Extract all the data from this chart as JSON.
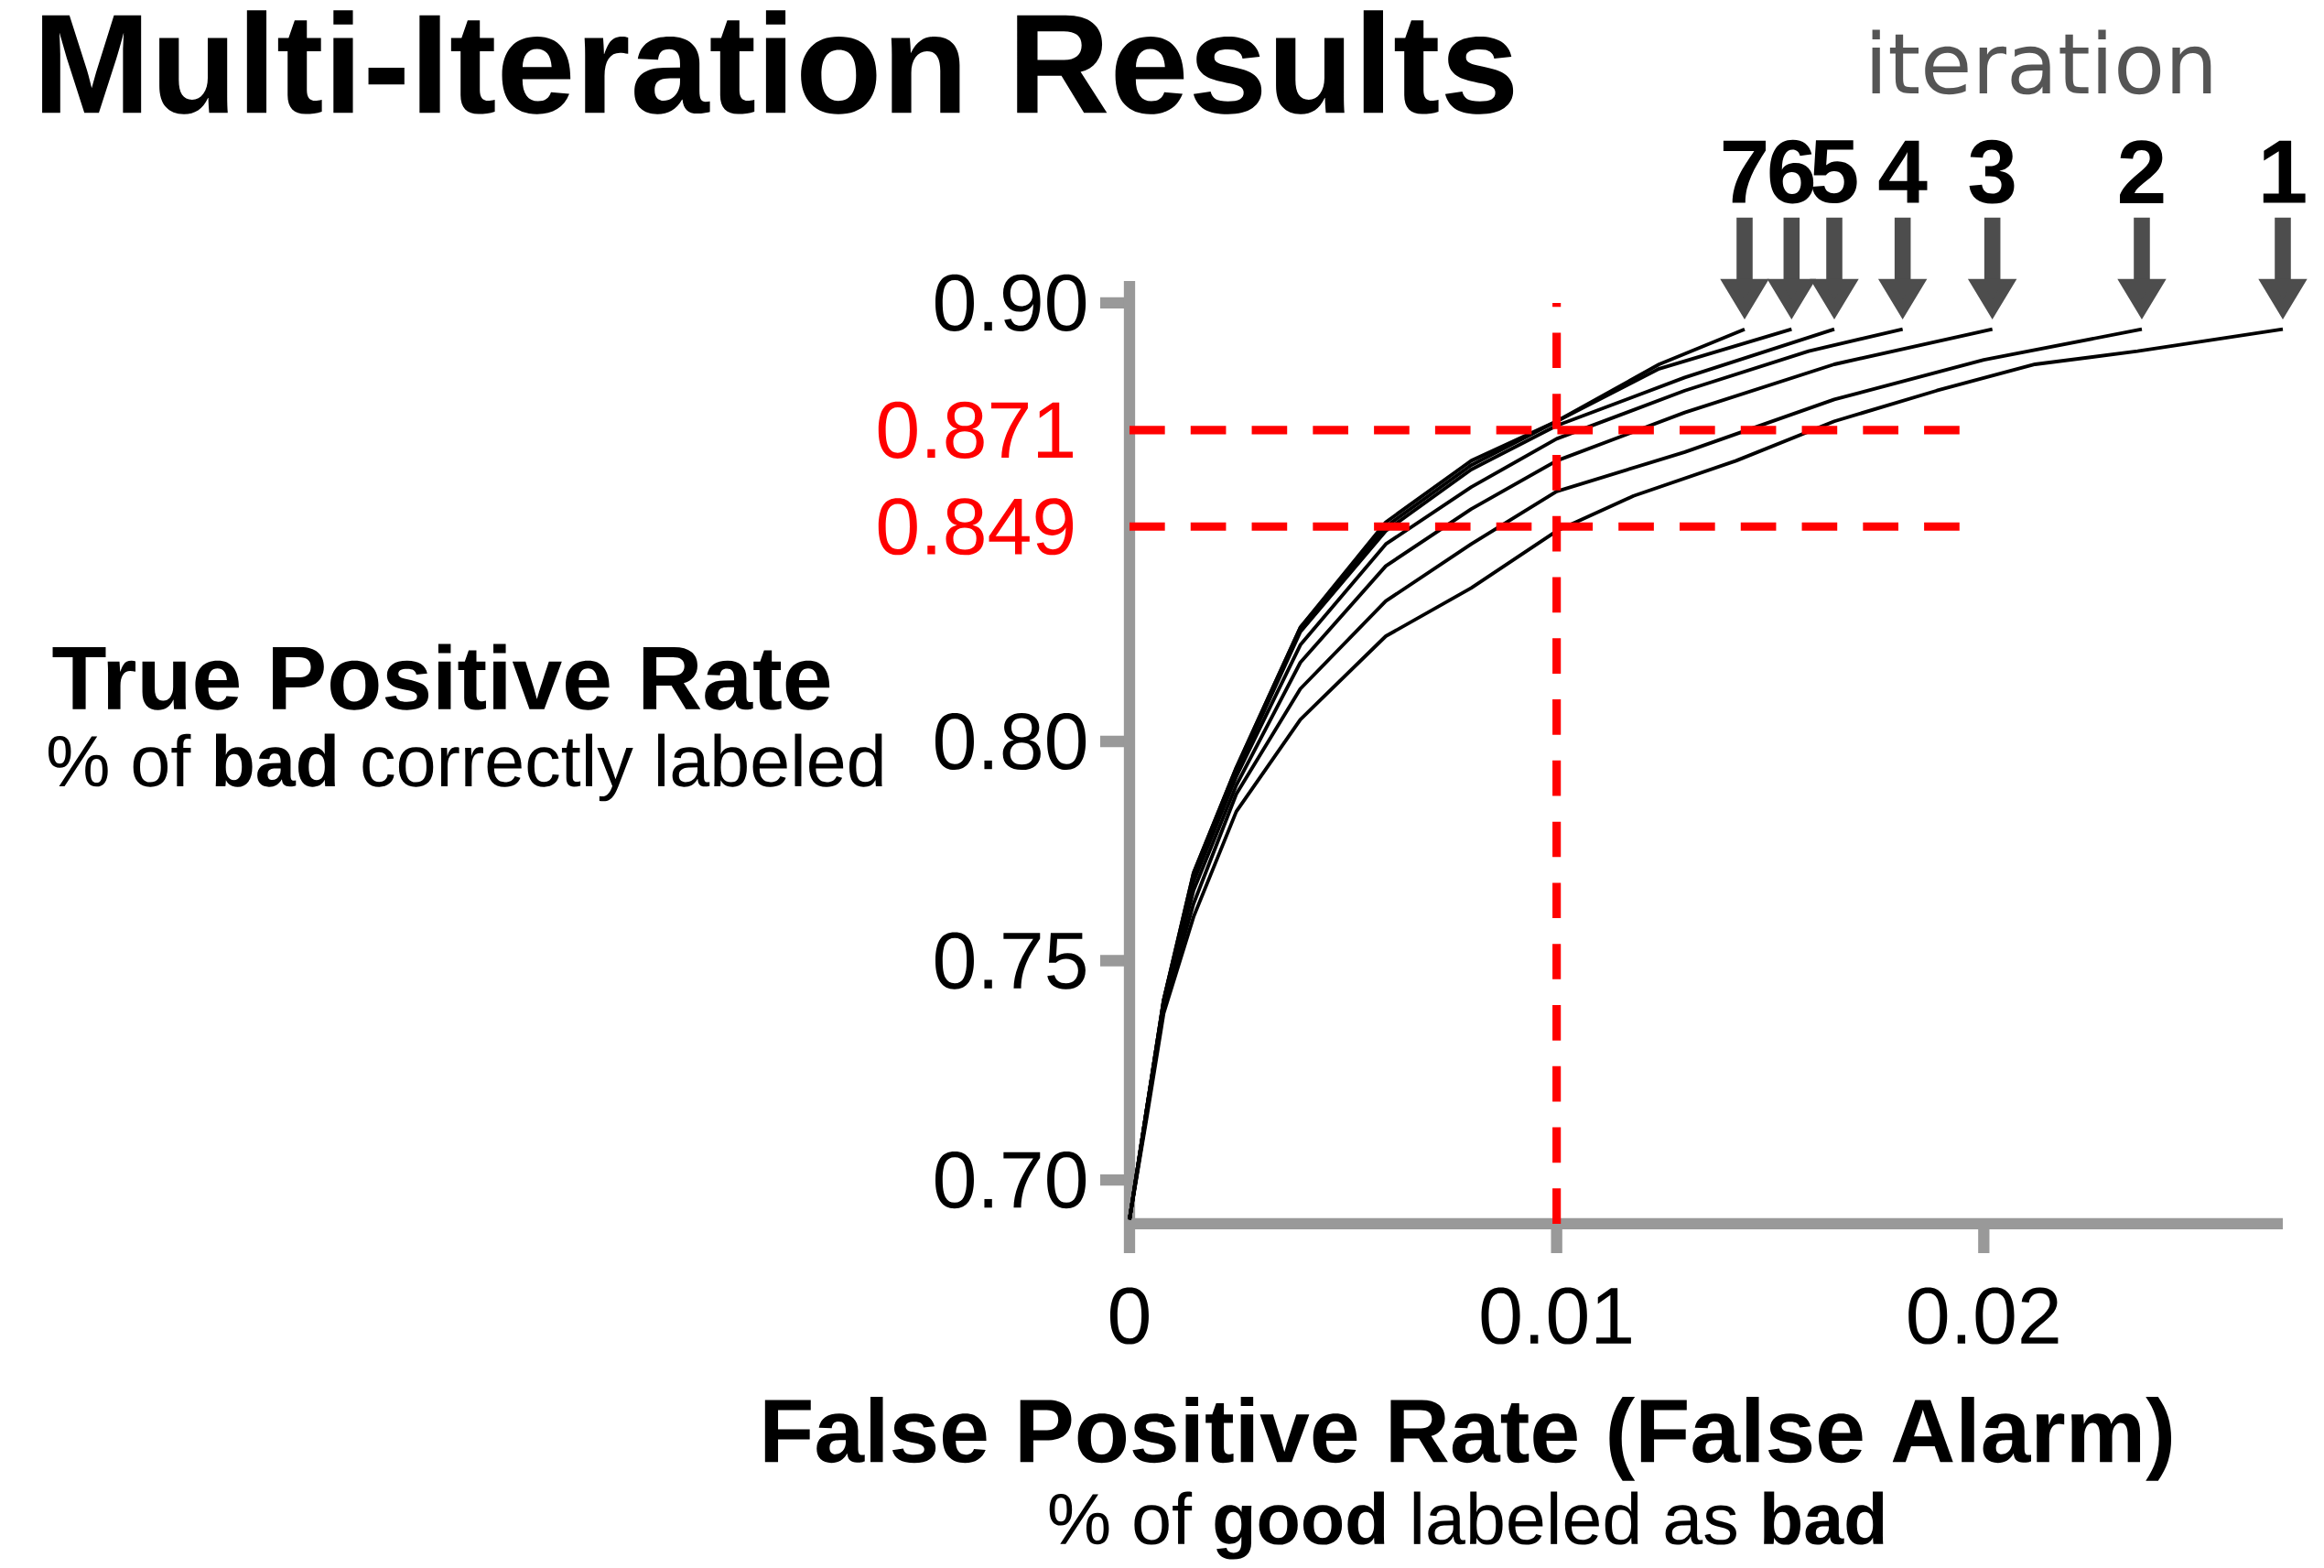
{
  "chart_data": {
    "type": "line",
    "title": "Multi-Iteration Results",
    "xlabel": "False Positive Rate (False Alarm)",
    "ylabel": "True Positive Rate",
    "legend_title": "iteration",
    "annotations": [
      "% of **bad** correctly labeled",
      "% of **good** labeled as **bad**"
    ],
    "xlim": [
      0,
      0.027
    ],
    "ylim": [
      0.69,
      0.905
    ],
    "xticks": [
      0,
      0.01,
      0.02
    ],
    "yticks": [
      {
        "value": 0.7,
        "label": "0.70"
      },
      {
        "value": 0.75,
        "label": "0.75"
      },
      {
        "value": 0.8,
        "label": "0.80"
      },
      {
        "value": 0.9,
        "label": "0.90"
      }
    ],
    "ref_lines": [
      {
        "axis": "y",
        "value": 0.871,
        "label": "0.871",
        "color": "#ff0000",
        "line_style": "dashed"
      },
      {
        "axis": "y",
        "value": 0.849,
        "label": "0.849",
        "color": "#ff0000",
        "line_style": "dashed"
      },
      {
        "axis": "x",
        "value": 0.01,
        "color": "#ff0000",
        "line_style": "dashed"
      }
    ],
    "series": [
      {
        "name": "1",
        "color": "#000000",
        "x": [
          0,
          0.0004,
          0.0008,
          0.0015,
          0.0025,
          0.004,
          0.006,
          0.008,
          0.01,
          0.0118,
          0.0142,
          0.0165,
          0.0189,
          0.0212,
          0.0236,
          0.027
        ],
        "values": [
          0.691,
          0.714,
          0.738,
          0.76,
          0.784,
          0.805,
          0.824,
          0.835,
          0.848,
          0.856,
          0.864,
          0.873,
          0.88,
          0.886,
          0.889,
          0.894
        ]
      },
      {
        "name": "2",
        "color": "#000000",
        "x": [
          0,
          0.0004,
          0.0008,
          0.0015,
          0.0025,
          0.004,
          0.006,
          0.008,
          0.01,
          0.013,
          0.0165,
          0.02,
          0.0237
        ],
        "values": [
          0.691,
          0.715,
          0.739,
          0.763,
          0.788,
          0.812,
          0.832,
          0.845,
          0.857,
          0.866,
          0.878,
          0.887,
          0.894
        ]
      },
      {
        "name": "3",
        "color": "#000000",
        "x": [
          0,
          0.0004,
          0.0008,
          0.0015,
          0.0025,
          0.004,
          0.006,
          0.008,
          0.01,
          0.013,
          0.0165,
          0.0202
        ],
        "values": [
          0.691,
          0.715,
          0.74,
          0.766,
          0.79,
          0.818,
          0.84,
          0.853,
          0.864,
          0.875,
          0.886,
          0.894
        ]
      },
      {
        "name": "4",
        "color": "#000000",
        "x": [
          0,
          0.0004,
          0.0008,
          0.0015,
          0.0025,
          0.004,
          0.006,
          0.008,
          0.01,
          0.013,
          0.0159,
          0.0181
        ],
        "values": [
          0.691,
          0.716,
          0.74,
          0.768,
          0.792,
          0.822,
          0.845,
          0.858,
          0.869,
          0.88,
          0.889,
          0.894
        ]
      },
      {
        "name": "5",
        "color": "#000000",
        "x": [
          0,
          0.0004,
          0.0008,
          0.0015,
          0.0025,
          0.004,
          0.006,
          0.008,
          0.01,
          0.013,
          0.0165
        ],
        "values": [
          0.691,
          0.716,
          0.741,
          0.769,
          0.793,
          0.825,
          0.848,
          0.862,
          0.872,
          0.883,
          0.894
        ]
      },
      {
        "name": "6",
        "color": "#000000",
        "x": [
          0,
          0.0004,
          0.0008,
          0.0015,
          0.0025,
          0.004,
          0.006,
          0.008,
          0.01,
          0.0124,
          0.0155
        ],
        "values": [
          0.691,
          0.716,
          0.741,
          0.77,
          0.794,
          0.826,
          0.849,
          0.863,
          0.873,
          0.885,
          0.894
        ]
      },
      {
        "name": "7",
        "color": "#000000",
        "x": [
          0,
          0.0004,
          0.0008,
          0.0015,
          0.0025,
          0.004,
          0.006,
          0.008,
          0.01,
          0.0124,
          0.0144
        ],
        "values": [
          0.691,
          0.716,
          0.741,
          0.77,
          0.794,
          0.826,
          0.85,
          0.864,
          0.873,
          0.886,
          0.894
        ]
      }
    ]
  }
}
